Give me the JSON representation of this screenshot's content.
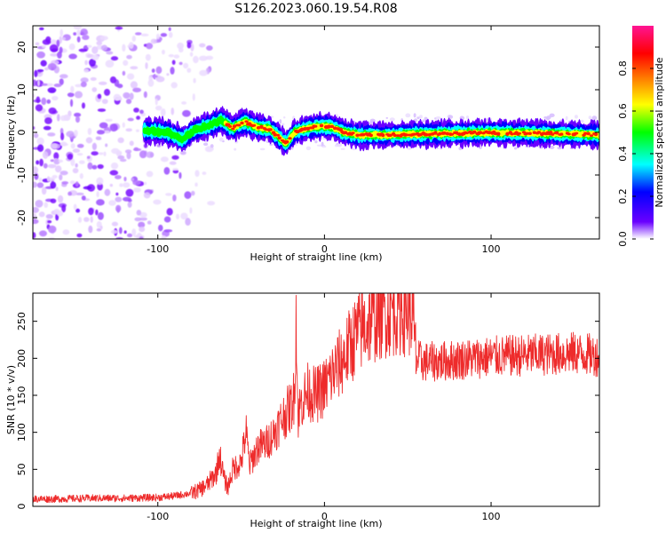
{
  "title": "S126.2023.060.19.54.R08",
  "chart_data": [
    {
      "type": "heatmap",
      "title": "",
      "xlabel": "Height of straight line (km)",
      "ylabel": "Frequency (Hz)",
      "xlim": [
        -175,
        165
      ],
      "ylim": [
        -25,
        25
      ],
      "xticks": [
        -100,
        0,
        100
      ],
      "xtick_labels": [
        "-100",
        "0",
        "100"
      ],
      "yticks": [
        -20,
        -10,
        0,
        10,
        20
      ],
      "ytick_labels": [
        "-20",
        "-10",
        "0",
        "10",
        "20"
      ],
      "grid": false,
      "noise_region_x": [
        -175,
        -78
      ],
      "ridge_center_hz": [
        [
          -108,
          0.4
        ],
        [
          -95,
          0.1
        ],
        [
          -85,
          -1.6
        ],
        [
          -78,
          0.5
        ],
        [
          -70,
          1.5
        ],
        [
          -62,
          2.8
        ],
        [
          -55,
          1.0
        ],
        [
          -48,
          2.5
        ],
        [
          -40,
          1.2
        ],
        [
          -33,
          0.8
        ],
        [
          -27,
          -1.2
        ],
        [
          -23,
          -2.7
        ],
        [
          -18,
          0.0
        ],
        [
          -10,
          1.0
        ],
        [
          -2,
          1.5
        ],
        [
          5,
          1.2
        ],
        [
          12,
          0.0
        ],
        [
          20,
          -0.6
        ],
        [
          40,
          -0.6
        ],
        [
          60,
          -0.4
        ],
        [
          80,
          -0.2
        ],
        [
          100,
          -0.1
        ],
        [
          120,
          -0.2
        ],
        [
          140,
          -0.3
        ],
        [
          165,
          -0.6
        ]
      ],
      "colorbar": {
        "label": "Normalized spectral amplitude",
        "range": [
          0,
          1
        ],
        "ticks": [
          0.0,
          0.2,
          0.4,
          0.6,
          0.8
        ],
        "tick_labels": [
          "0.0",
          "0.2",
          "0.4",
          "0.6",
          "0.8"
        ],
        "colors": [
          "#ffffff",
          "#6a00ff",
          "#0000ff",
          "#00ffff",
          "#00ff00",
          "#ffff00",
          "#ff8000",
          "#ff0000",
          "#ff1493"
        ]
      }
    },
    {
      "type": "line",
      "title": "",
      "xlabel": "Height of straight line (km)",
      "ylabel": "SNR (10 * v/v)",
      "xlim": [
        -175,
        165
      ],
      "ylim": [
        0,
        288
      ],
      "xticks": [
        -100,
        0,
        100
      ],
      "xtick_labels": [
        "-100",
        "0",
        "100"
      ],
      "yticks": [
        0,
        50,
        100,
        150,
        200,
        250
      ],
      "ytick_labels": [
        "0",
        "50",
        "100",
        "150",
        "200",
        "250"
      ],
      "grid": false,
      "color": "#ee2b2b",
      "series": [
        {
          "x": [
            -175,
            -160,
            -140,
            -120,
            -100,
            -90,
            -80,
            -75,
            -70,
            -65,
            -63,
            -60,
            -58,
            -55,
            -50,
            -47,
            -45,
            -40,
            -35,
            -30,
            -25,
            -20,
            -18,
            -17,
            -16,
            -14,
            -10,
            -5,
            0,
            5,
            10,
            15,
            20,
            25,
            30,
            35,
            40,
            45,
            50,
            53,
            54,
            55,
            60,
            70,
            80,
            90,
            100,
            110,
            120,
            130,
            140,
            150,
            160,
            165
          ],
          "y": [
            10,
            10,
            11,
            11,
            12,
            14,
            18,
            22,
            30,
            45,
            70,
            35,
            25,
            50,
            60,
            100,
            55,
            80,
            85,
            100,
            120,
            135,
            150,
            265,
            120,
            140,
            155,
            150,
            160,
            180,
            195,
            215,
            235,
            245,
            255,
            262,
            265,
            268,
            265,
            262,
            225,
            198,
            195,
            196,
            198,
            200,
            202,
            203,
            204,
            205,
            206,
            207,
            205,
            203
          ]
        }
      ]
    }
  ]
}
